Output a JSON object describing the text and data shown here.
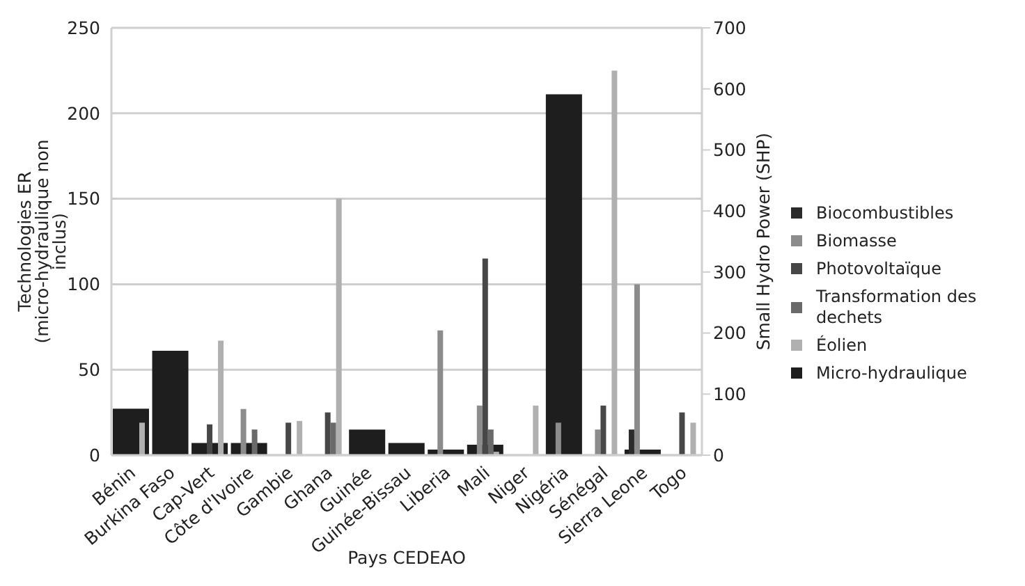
{
  "chart_data": {
    "type": "bar",
    "xlabel": "Pays CEDEAO",
    "ylabel": "Technologies ER (micro-hydraulique non inclus)",
    "y2label": "Small Hydro Power (SHP)",
    "categories": [
      "Bénin",
      "Burkina Faso",
      "Cap-Vert",
      "Côte d'Ivoire",
      "Gambie",
      "Ghana",
      "Guinée",
      "Guinée-Bissau",
      "Liberia",
      "Mali",
      "Niger",
      "Nigéria",
      "Sénégal",
      "Sierra Leone",
      "Togo"
    ],
    "series": [
      {
        "name": "Biocombustibles",
        "color": "#2b2b2b",
        "values": [
          null,
          null,
          null,
          null,
          null,
          null,
          null,
          null,
          null,
          null,
          null,
          null,
          null,
          15,
          null
        ]
      },
      {
        "name": "Biomasse",
        "color": "#8c8c8c",
        "values": [
          null,
          null,
          null,
          27,
          null,
          null,
          null,
          null,
          73,
          29,
          null,
          19,
          15,
          100,
          null
        ]
      },
      {
        "name": "Photovoltaïque",
        "color": "#474747",
        "values": [
          null,
          null,
          18,
          null,
          19,
          25,
          null,
          null,
          null,
          115,
          null,
          null,
          29,
          null,
          25
        ]
      },
      {
        "name": "Transformation des dechets",
        "color": "#6a6a6a",
        "values": [
          null,
          null,
          null,
          15,
          null,
          19,
          null,
          null,
          null,
          15,
          null,
          null,
          null,
          null,
          null
        ]
      },
      {
        "name": "Éolien",
        "color": "#b0b0b0",
        "values": [
          19,
          null,
          67,
          null,
          20,
          150,
          null,
          null,
          null,
          2,
          29,
          null,
          225,
          null,
          19
        ]
      },
      {
        "name": "Micro-hydraulique",
        "color": "#1e1e1e",
        "axis": "y2",
        "values": [
          76,
          171,
          20,
          20,
          null,
          null,
          42,
          20,
          9,
          17,
          null,
          591,
          null,
          9,
          null
        ]
      }
    ],
    "ylim": [
      0,
      250
    ],
    "yticks": [
      0,
      50,
      100,
      150,
      200,
      250
    ],
    "y2lim": [
      0,
      700
    ],
    "y2ticks": [
      0,
      100,
      200,
      300,
      400,
      500,
      600,
      700
    ],
    "grid": "y",
    "legend": "right"
  }
}
